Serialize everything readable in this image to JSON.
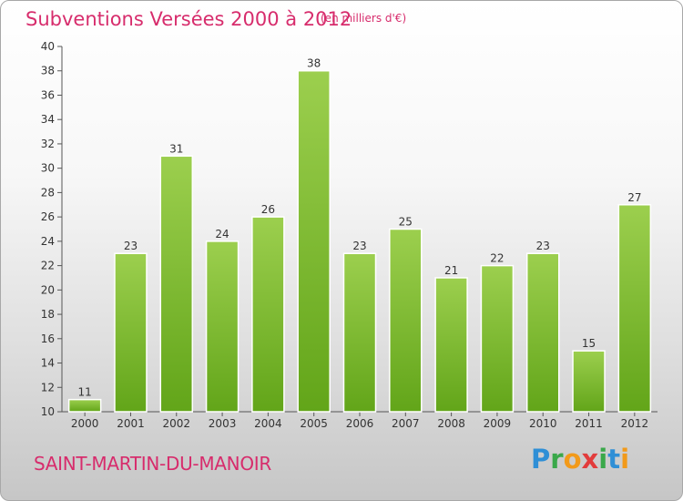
{
  "header": {
    "title": "Subventions Versées 2000 à 2012",
    "subtitle": "(en milliers d'€)"
  },
  "footer": {
    "commune": "SAINT-MARTIN-DU-MANOIR",
    "logo_letters": [
      "P",
      "r",
      "o",
      "x",
      "i",
      "t",
      "i"
    ],
    "logo_colors": [
      "#2f8fd6",
      "#3aa84a",
      "#f29a1a",
      "#e23c3c",
      "#3aa84a",
      "#2f8fd6",
      "#f29a1a"
    ]
  },
  "chart_data": {
    "type": "bar",
    "title": "Subventions Versées 2000 à 2012",
    "categories": [
      "2000",
      "2001",
      "2002",
      "2003",
      "2004",
      "2005",
      "2006",
      "2007",
      "2008",
      "2009",
      "2010",
      "2011",
      "2012"
    ],
    "values": [
      11,
      23,
      31,
      24,
      26,
      38,
      23,
      25,
      21,
      22,
      23,
      15,
      27
    ],
    "ylim": [
      10,
      40
    ],
    "yticks": [
      10,
      12,
      14,
      16,
      18,
      20,
      22,
      24,
      26,
      28,
      30,
      32,
      34,
      36,
      38,
      40
    ],
    "grid": false,
    "colors": {
      "bar_light": "#9ccf4e",
      "bar_dark": "#62a519",
      "axis": "#555555",
      "text": "#333333"
    }
  }
}
